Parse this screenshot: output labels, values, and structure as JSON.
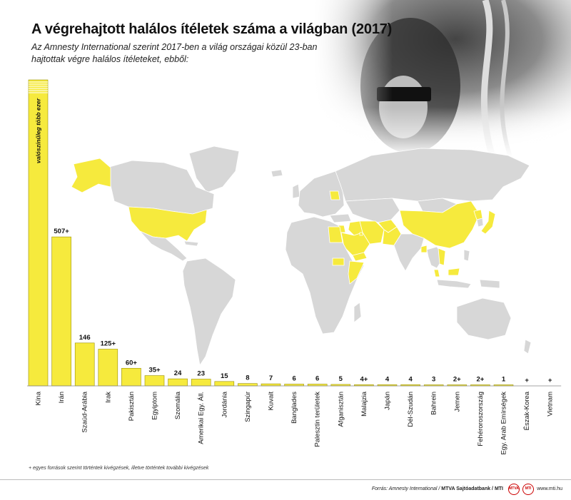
{
  "title": "A végrehajtott halálos ítéletek száma a világban (2017)",
  "subtitle": "Az Amnesty International szerint 2017-ben a világ országai közül 23-ban hajtottak végre halálos ítéleteket, ebből:",
  "colors": {
    "highlight": "#f6ea3d",
    "land": "#d7d7d7",
    "border": "#ffffff",
    "bar_stroke": "#9a9000"
  },
  "chart_data": {
    "type": "bar",
    "categories": [
      "Kína",
      "Irán",
      "Szaúd-Arábia",
      "Irak",
      "Pakisztán",
      "Egyiptom",
      "Szomália",
      "Amerikai Egy. Áll.",
      "Jordánia",
      "Szingapúr",
      "Kuvait",
      "Banglades",
      "Palesztin területek",
      "Afganisztán",
      "Malajzia",
      "Japán",
      "Dél-Szudán",
      "Bahrein",
      "Jemen",
      "Fehéroroszország",
      "Egy. Arab Emírségek",
      "Észak-Korea",
      "Vietnam"
    ],
    "values": [
      null,
      507,
      146,
      125,
      60,
      35,
      24,
      23,
      15,
      8,
      7,
      6,
      6,
      5,
      4,
      4,
      4,
      3,
      2,
      2,
      1,
      null,
      null
    ],
    "value_labels": [
      "",
      "507+",
      "146",
      "125+",
      "60+",
      "35+",
      "24",
      "23",
      "15",
      "8",
      "7",
      "6",
      "6",
      "5",
      "4+",
      "4",
      "4",
      "3",
      "2+",
      "2+",
      "1",
      "+",
      "+"
    ],
    "china_label": "valószínűleg több ezer",
    "note": "+ egyes források szerint történtek kivégzések, illetve történtek további kivégzések"
  },
  "map": {
    "highlighted": [
      "USA",
      "Alaszka",
      "Kína",
      "Irán",
      "Szaúd-Arábia",
      "Irak",
      "Pakisztán",
      "Egyiptom",
      "Szomália",
      "Jordánia",
      "Kuvait",
      "Banglades",
      "Afganisztán",
      "Malajzia",
      "Japán",
      "Dél-Szudán",
      "Jemen",
      "Fehéroroszország",
      "Vietnam",
      "Észak-Korea"
    ]
  },
  "footer": {
    "source_prefix": "Forrás: Amnesty International / ",
    "source_brand": "MTVA Sajtóadatbank / MTI",
    "logo1": "MTVA",
    "logo2": "MTI",
    "site": "www.mti.hu"
  }
}
